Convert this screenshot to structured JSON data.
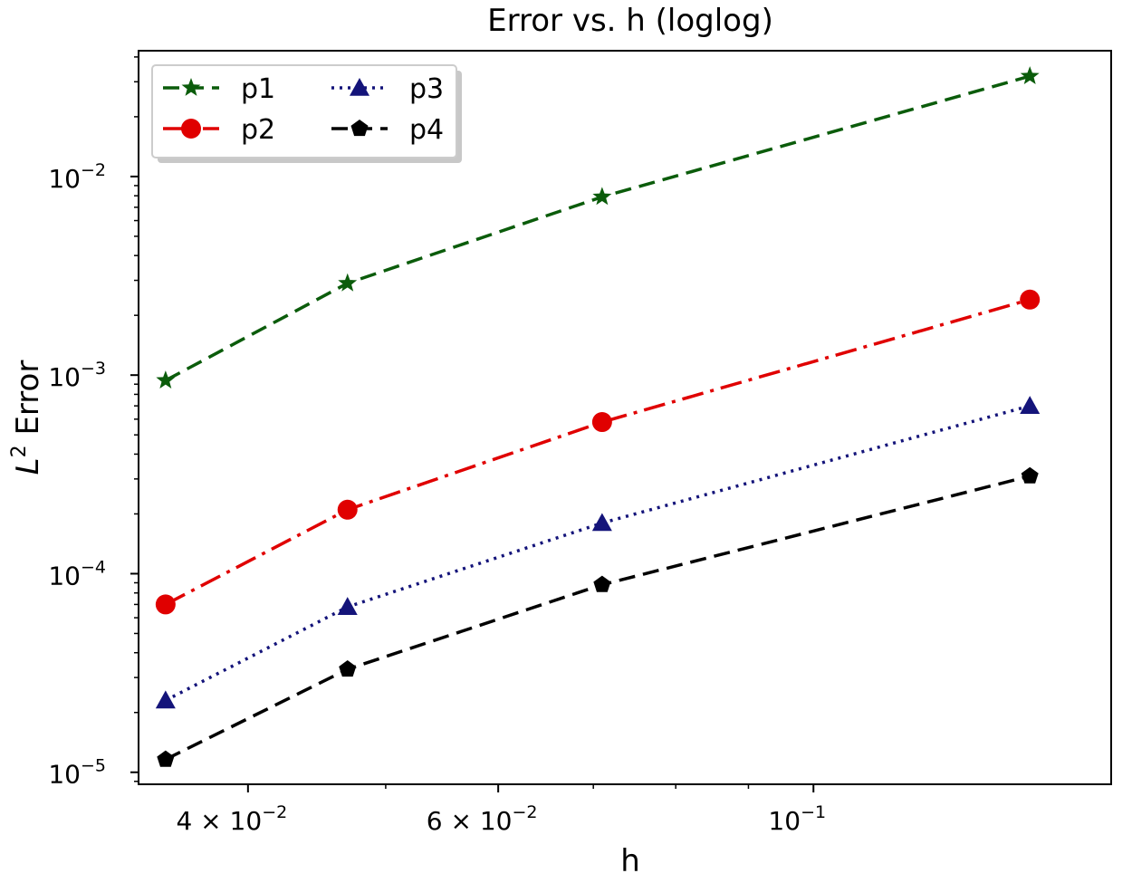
{
  "chart_data": {
    "type": "line",
    "title": "Error vs. h (loglog)",
    "xlabel": "h",
    "ylabel": "L² Error",
    "ylabel_parts": {
      "base": "L",
      "sup": "2",
      "rest": " Error"
    },
    "x_scale": "log",
    "y_scale": "log",
    "xlim": [
      0.0335,
      0.162
    ],
    "ylim": [
      8.7e-06,
      0.043
    ],
    "grid": false,
    "legend_position": "upper-left",
    "legend_columns": 2,
    "x": [
      0.035,
      0.047,
      0.071,
      0.142
    ],
    "x_tick_labels": [
      {
        "value": 0.04,
        "base": "4 × 10",
        "exp": "−2"
      },
      {
        "value": 0.06,
        "base": "6 × 10",
        "exp": "−2"
      },
      {
        "value": 0.1,
        "base": "10",
        "exp": "−1"
      }
    ],
    "x_minor_ticks": [
      0.05,
      0.07,
      0.08,
      0.09
    ],
    "y_tick_labels": [
      {
        "value": 1e-05,
        "base": "10",
        "exp": "−5"
      },
      {
        "value": 0.0001,
        "base": "10",
        "exp": "−4"
      },
      {
        "value": 0.001,
        "base": "10",
        "exp": "−3"
      },
      {
        "value": 0.01,
        "base": "10",
        "exp": "−2"
      }
    ],
    "series": [
      {
        "name": "p1",
        "color": "#0b5c0b",
        "dash": "18,9",
        "marker": "star",
        "values": [
          0.00094,
          0.0029,
          0.0079,
          0.032
        ]
      },
      {
        "name": "p2",
        "color": "#e00000",
        "dash": "24,8,4,8",
        "marker": "circle",
        "values": [
          7e-05,
          0.00021,
          0.00058,
          0.0024
        ]
      },
      {
        "name": "p3",
        "color": "#14147a",
        "dash": "3,6",
        "marker": "triangle",
        "values": [
          2.3e-05,
          6.8e-05,
          0.00018,
          0.0007
        ]
      },
      {
        "name": "p4",
        "color": "#000000",
        "dash": "18,9",
        "marker": "pentagon",
        "values": [
          1.16e-05,
          3.3e-05,
          8.8e-05,
          0.00031
        ]
      }
    ]
  }
}
